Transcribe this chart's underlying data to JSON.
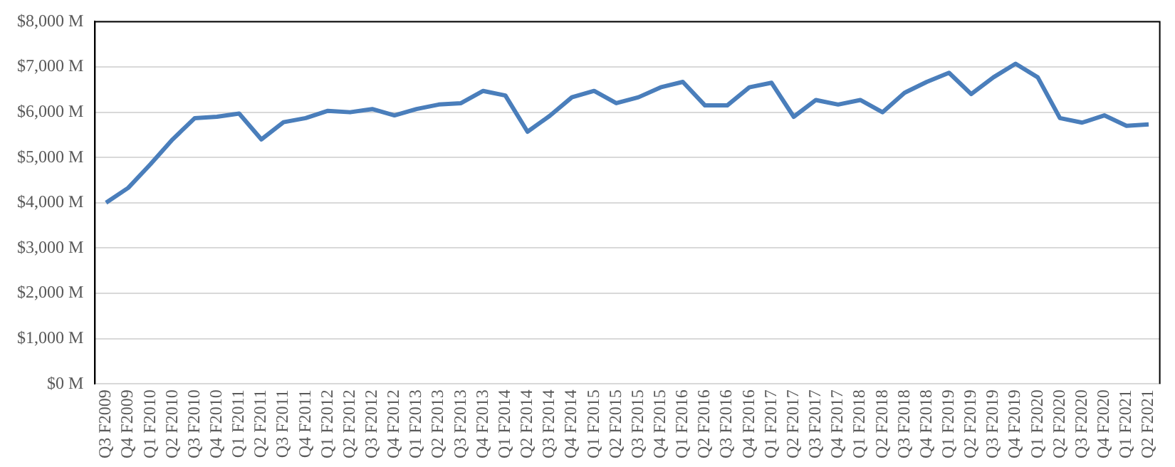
{
  "chart_data": {
    "type": "line",
    "categories": [
      "Q3 F2009",
      "Q4 F2009",
      "Q1 F2010",
      "Q2 F2010",
      "Q3 F2010",
      "Q4 F2010",
      "Q1 F2011",
      "Q2 F2011",
      "Q3 F2011",
      "Q4 F2011",
      "Q1 F2012",
      "Q2 F2012",
      "Q3 F2012",
      "Q4 F2012",
      "Q1 F2013",
      "Q2 F2013",
      "Q3 F2013",
      "Q4 F2013",
      "Q1 F2014",
      "Q2 F2014",
      "Q3 F2014",
      "Q4 F2014",
      "Q1 F2015",
      "Q2 F2015",
      "Q3 F2015",
      "Q4 F2015",
      "Q1 F2016",
      "Q2 F2016",
      "Q3 F2016",
      "Q4 F2016",
      "Q1 F2017",
      "Q2 F2017",
      "Q3 F2017",
      "Q4 F2017",
      "Q1 F2018",
      "Q2 F2018",
      "Q3 F2018",
      "Q4 F2018",
      "Q1 F2019",
      "Q2 F2019",
      "Q3 F2019",
      "Q4 F2019",
      "Q1 F2020",
      "Q2 F2020",
      "Q3 F2020",
      "Q4 F2020",
      "Q1 F2021",
      "Q2 F2021"
    ],
    "series": [
      {
        "color": "#4a7ebb",
        "values": [
          4000,
          4330,
          4850,
          5400,
          5870,
          5900,
          5970,
          5400,
          5780,
          5870,
          6030,
          6000,
          6070,
          5930,
          6070,
          6170,
          6200,
          6470,
          6370,
          5570,
          5920,
          6330,
          6470,
          6200,
          6330,
          6550,
          6670,
          6150,
          6150,
          6550,
          6650,
          5900,
          6270,
          6170,
          6270,
          6000,
          6430,
          6670,
          6870,
          6400,
          6770,
          7070,
          6770,
          5870,
          5770,
          5930,
          5700,
          5730
        ]
      }
    ],
    "ylim": [
      0,
      8000
    ],
    "yticks": [
      {
        "value": 0,
        "label": "$0 M"
      },
      {
        "value": 1000,
        "label": "$1,000 M"
      },
      {
        "value": 2000,
        "label": "$2,000 M"
      },
      {
        "value": 3000,
        "label": "$3,000 M"
      },
      {
        "value": 4000,
        "label": "$4,000 M"
      },
      {
        "value": 5000,
        "label": "$5,000 M"
      },
      {
        "value": 6000,
        "label": "$6,000 M"
      },
      {
        "value": 7000,
        "label": "$7,000 M"
      },
      {
        "value": 8000,
        "label": "$8,000 M"
      }
    ],
    "grid": "y",
    "legend": false,
    "marker": "none",
    "line_style": "solid"
  }
}
